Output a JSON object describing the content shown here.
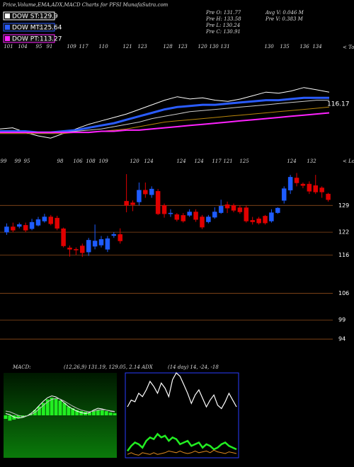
{
  "chart_data": {
    "type": "stock-dashboard",
    "title": "Price,Volume,EMA,ADX,MACD Charts for PFSI MunafaSutra.com",
    "legend": [
      {
        "name": "DOW ST:",
        "value": 129.9,
        "color": "#ffffff"
      },
      {
        "name": "DOW MT:",
        "value": 125.64,
        "color": "#2a5cff"
      },
      {
        "name": "DOW PT:",
        "value": 113.27,
        "color": "#ff22ff"
      }
    ],
    "info": [
      "Pre O: 131.77",
      "Pre H: 133.58",
      "Pre L: 130.24",
      "Pre C: 130.91",
      "Avg V: 0.046 M",
      "Pre V: 0.383 M"
    ],
    "overview": {
      "ylim": [
        85,
        168
      ],
      "tops_label": "< Tops",
      "tops": [
        101,
        104,
        95,
        91,
        109,
        117,
        110,
        121,
        123,
        128,
        123,
        120,
        130,
        131,
        130,
        135,
        136,
        134
      ],
      "last_label": 116.17,
      "series": [
        {
          "color": "#ffffff",
          "width": 1,
          "values": [
            99,
            100,
            96,
            93,
            91,
            95,
            99,
            103,
            106,
            109,
            112,
            116,
            120,
            124,
            127,
            125,
            126,
            124,
            123,
            125,
            128,
            131,
            130,
            132,
            135,
            133,
            131
          ]
        },
        {
          "color": "#2a5cff",
          "width": 3,
          "values": [
            97,
            97,
            97,
            96,
            96,
            97,
            98,
            100,
            102,
            104,
            107,
            110,
            113,
            116,
            118,
            119,
            120,
            120,
            121,
            122,
            123,
            124,
            124,
            125,
            126,
            126,
            126
          ]
        },
        {
          "color": "#cccccc",
          "width": 1,
          "values": [
            96,
            96,
            96,
            96,
            96,
            96,
            97,
            98,
            99,
            101,
            103,
            105,
            108,
            110,
            112,
            114,
            115,
            116,
            117,
            118,
            119,
            120,
            121,
            122,
            123,
            124,
            124
          ]
        },
        {
          "color": "#b8860b",
          "width": 1,
          "values": [
            95,
            95,
            95,
            95,
            95,
            95,
            96,
            96,
            97,
            98,
            99,
            101,
            103,
            105,
            106,
            107,
            108,
            109,
            110,
            111,
            112,
            113,
            114,
            115,
            116,
            117,
            118
          ]
        },
        {
          "color": "#ff22ff",
          "width": 2,
          "values": [
            96,
            96,
            96,
            96,
            96,
            96,
            96,
            96,
            97,
            97,
            98,
            98,
            99,
            100,
            101,
            102,
            103,
            104,
            105,
            106,
            107,
            108,
            109,
            110,
            111,
            112,
            113
          ]
        }
      ]
    },
    "price": {
      "lows_label": "< Lows",
      "lows": [
        99,
        99,
        95,
        98,
        106,
        108,
        109,
        120,
        124,
        124,
        124,
        117,
        121,
        125,
        124,
        132
      ],
      "ylim": [
        92,
        137.4
      ],
      "yticks": [
        129,
        122,
        116,
        106,
        99,
        94
      ],
      "up_color": "#1e5cff",
      "down_color": "#e00000",
      "open": [
        122,
        123.4,
        123.5,
        123.8,
        122.9,
        123.8,
        124.9,
        126,
        125.7,
        122.9,
        117.9,
        117.5,
        118.4,
        116.8,
        118.3,
        118.6,
        117.5,
        121.1,
        121.4,
        130.1,
        129.7,
        129.9,
        133,
        131.8,
        132.7,
        129,
        126.8,
        126.6,
        126.4,
        126.4,
        127.3,
        126,
        124.7,
        125.9,
        127.1,
        129.2,
        129,
        128.4,
        128.4,
        125.1,
        125.5,
        126.2,
        124.9,
        127.1,
        130.3,
        133,
        136.2,
        134.6,
        134.6,
        134.2,
        133.6,
        132
      ],
      "close": [
        123.4,
        122.5,
        124,
        122.5,
        124.6,
        125.3,
        126,
        124.2,
        123,
        118.4,
        117.5,
        117.3,
        116.6,
        119.9,
        119.7,
        120.1,
        120.3,
        121.4,
        119.7,
        129,
        129.2,
        133,
        132,
        133.3,
        126.8,
        126.8,
        127,
        125.3,
        124.9,
        127.3,
        125.3,
        123.3,
        126,
        127.3,
        128.8,
        128.3,
        127.7,
        127.3,
        124.9,
        124.7,
        124.4,
        124.4,
        127.1,
        128.3,
        133.4,
        136.4,
        134.9,
        134.2,
        132.7,
        132.5,
        132.5,
        130.5
      ],
      "high": [
        124.3,
        124.5,
        124.5,
        124.5,
        125.5,
        126,
        126.8,
        126.5,
        126.3,
        123.2,
        118.5,
        118,
        119,
        120.5,
        124,
        121,
        121,
        122,
        123,
        137.2,
        130.3,
        135,
        135,
        134,
        133.3,
        129.5,
        128,
        127,
        127,
        128,
        128,
        126.5,
        126.5,
        128.5,
        130.5,
        130,
        129.5,
        129,
        129,
        126,
        126,
        126.5,
        128,
        128.5,
        134,
        137,
        137.5,
        135,
        135.3,
        137,
        134,
        132.3
      ],
      "low": [
        121.3,
        122,
        123,
        122,
        122.5,
        123.5,
        124.5,
        123.8,
        122.5,
        118,
        115.6,
        116,
        115.5,
        115.8,
        117.5,
        118,
        116.8,
        120.5,
        119,
        127.2,
        127.5,
        129,
        131,
        131,
        126.5,
        125.8,
        126,
        124.8,
        124.5,
        126,
        124.7,
        122.8,
        124.3,
        125.5,
        126.8,
        127,
        127.2,
        126.8,
        124.5,
        124,
        124,
        124,
        124.5,
        126.8,
        129.5,
        132,
        134,
        133.5,
        132,
        132,
        131,
        130
      ]
    },
    "macd": {
      "label": "MACD:",
      "params": "(12,26,9) 131.19, 129.05, 2.14 ADX",
      "ylim": [
        -12,
        12
      ],
      "hist_color": "#22ee22",
      "histogram": [
        -1,
        -1.5,
        -1.2,
        -0.8,
        -0.5,
        -0.2,
        0.5,
        1.5,
        2.5,
        3.5,
        4.5,
        5,
        4.8,
        4.2,
        3.5,
        2.5,
        2,
        1.5,
        1.2,
        1,
        0.8,
        1.2,
        1.5,
        1.4,
        1.2,
        0.8,
        0.6
      ],
      "lines": [
        {
          "color": "#ffffff",
          "values": [
            0.5,
            0.2,
            -0.5,
            -0.8,
            -0.6,
            -0.2,
            0.5,
            1.5,
            2.8,
            4,
            5,
            5.5,
            5.2,
            4.5,
            3.5,
            2.5,
            1.8,
            1.2,
            0.8,
            0.5,
            0.8,
            1.5,
            2,
            1.8,
            1.5,
            1.2,
            1
          ]
        },
        {
          "color": "#bbbbbb",
          "values": [
            1.2,
            1,
            0.5,
            0,
            -0.3,
            -0.2,
            0.2,
            0.8,
            1.8,
            2.8,
            3.8,
            4.5,
            4.8,
            4.6,
            4,
            3.3,
            2.6,
            2,
            1.5,
            1.2,
            1,
            1.2,
            1.5,
            1.6,
            1.5,
            1.3,
            1.1
          ]
        }
      ]
    },
    "adx": {
      "params": "(14 day) 14, -24, -18",
      "ylim": [
        0,
        50
      ],
      "lines": [
        {
          "color": "#ffffff",
          "width": 1.2,
          "values": [
            30,
            34,
            33,
            38,
            36,
            40,
            45,
            42,
            38,
            44,
            41,
            36,
            46,
            50,
            48,
            43,
            38,
            32,
            37,
            40,
            35,
            30,
            34,
            37,
            31,
            29,
            33,
            38,
            34,
            30
          ]
        },
        {
          "color": "#22ee22",
          "width": 2.5,
          "values": [
            4,
            7,
            9,
            8,
            6,
            10,
            12,
            11,
            14,
            12,
            13,
            10,
            12,
            11,
            8,
            9,
            10,
            7,
            8,
            9,
            6,
            8,
            7,
            5,
            6,
            8,
            9,
            7,
            6,
            5
          ]
        },
        {
          "color": "#e08a1e",
          "width": 1,
          "values": [
            2,
            3,
            2,
            1.5,
            3,
            2.5,
            2,
            3,
            2,
            2.5,
            3,
            4,
            3.5,
            3,
            4,
            3,
            2.5,
            3,
            4,
            3,
            3.5,
            4,
            3,
            4.5,
            3.5,
            3,
            2.5,
            3.5,
            3,
            2.5
          ]
        }
      ]
    }
  }
}
